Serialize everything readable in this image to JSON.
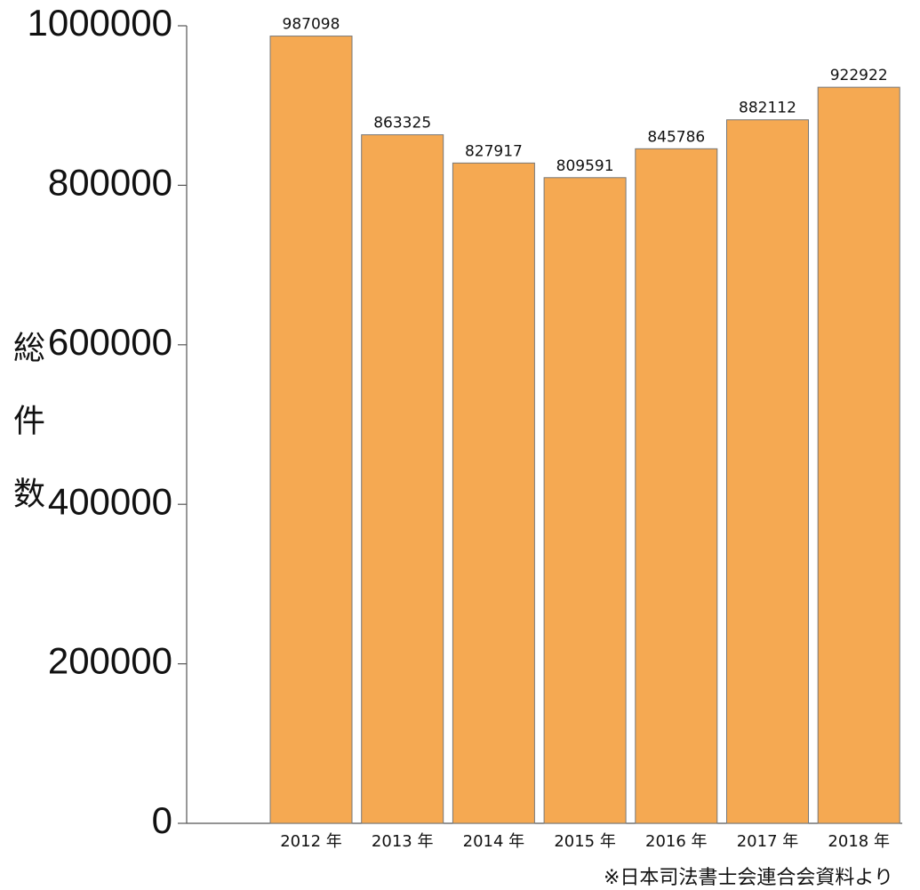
{
  "chart_data": {
    "type": "bar",
    "y_label": "総件数",
    "source": "※日本司法書士会連合会資料より",
    "categories": [
      "2012 年",
      "2013 年",
      "2014 年",
      "2015 年",
      "2016 年",
      "2017 年",
      "2018 年"
    ],
    "values": [
      987098,
      863325,
      827917,
      809591,
      845786,
      882112,
      922922
    ],
    "color": "#f5a952",
    "ylim": [
      0,
      1000000
    ],
    "yticks": [
      0,
      200000,
      400000,
      600000,
      800000,
      1000000
    ],
    "grid": false
  }
}
